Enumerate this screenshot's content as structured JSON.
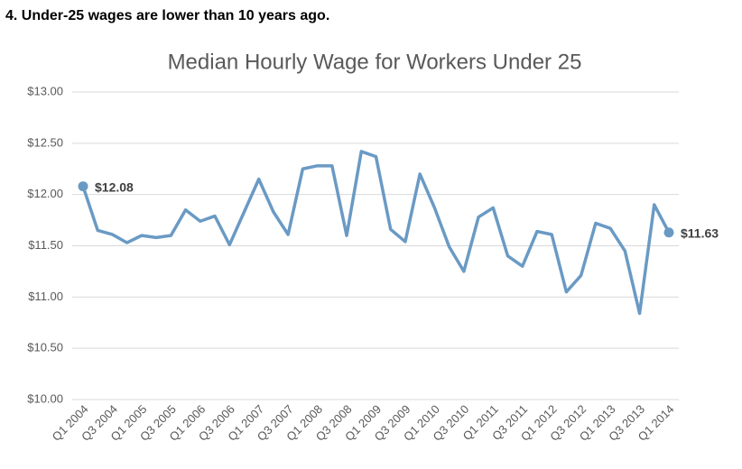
{
  "header": "4. Under-25 wages are lower than 10 years ago.",
  "chart_data": {
    "type": "line",
    "title": "Median Hourly Wage for Workers Under 25",
    "categories": [
      "Q1 2004",
      null,
      "Q3 2004",
      null,
      "Q1 2005",
      null,
      "Q3 2005",
      null,
      "Q1 2006",
      null,
      "Q3 2006",
      null,
      "Q1 2007",
      null,
      "Q3 2007",
      null,
      "Q1 2008",
      null,
      "Q3 2008",
      null,
      "Q1 2009",
      null,
      "Q3 2009",
      null,
      "Q1 2010",
      null,
      "Q3 2010",
      null,
      "Q1 2011",
      null,
      "Q3 2011",
      null,
      "Q1 2012",
      null,
      "Q3 2012",
      null,
      "Q1 2013",
      null,
      "Q3 2013",
      null,
      "Q1 2014"
    ],
    "series": [
      {
        "name": "Median Hourly Wage",
        "color": "#6a9ac4",
        "values": [
          12.08,
          11.65,
          11.61,
          11.53,
          11.6,
          11.58,
          11.6,
          11.85,
          11.74,
          11.79,
          11.51,
          11.83,
          12.15,
          11.83,
          11.61,
          12.25,
          12.28,
          12.28,
          11.6,
          12.42,
          12.37,
          11.66,
          11.54,
          12.2,
          11.87,
          11.49,
          11.25,
          11.78,
          11.87,
          11.4,
          11.3,
          11.64,
          11.61,
          11.05,
          11.21,
          11.72,
          11.67,
          11.45,
          10.84,
          11.9,
          11.63
        ],
        "value_labels": [
          "$12.08",
          null,
          null,
          null,
          null,
          null,
          null,
          null,
          null,
          null,
          null,
          null,
          null,
          null,
          null,
          null,
          null,
          null,
          null,
          null,
          null,
          null,
          null,
          null,
          null,
          null,
          null,
          null,
          null,
          null,
          null,
          null,
          null,
          null,
          null,
          null,
          null,
          null,
          null,
          null,
          "$11.63"
        ]
      }
    ],
    "ylim": [
      10,
      13
    ],
    "yticks": [
      {
        "value": 10,
        "label": "$10.00"
      },
      {
        "value": 10.5,
        "label": "$10.50"
      },
      {
        "value": 11,
        "label": "$11.00"
      },
      {
        "value": 11.5,
        "label": "$11.50"
      },
      {
        "value": 12,
        "label": "$12.00"
      },
      {
        "value": 12.5,
        "label": "$12.50"
      },
      {
        "value": 13,
        "label": "$13.00"
      }
    ],
    "grid": true
  }
}
